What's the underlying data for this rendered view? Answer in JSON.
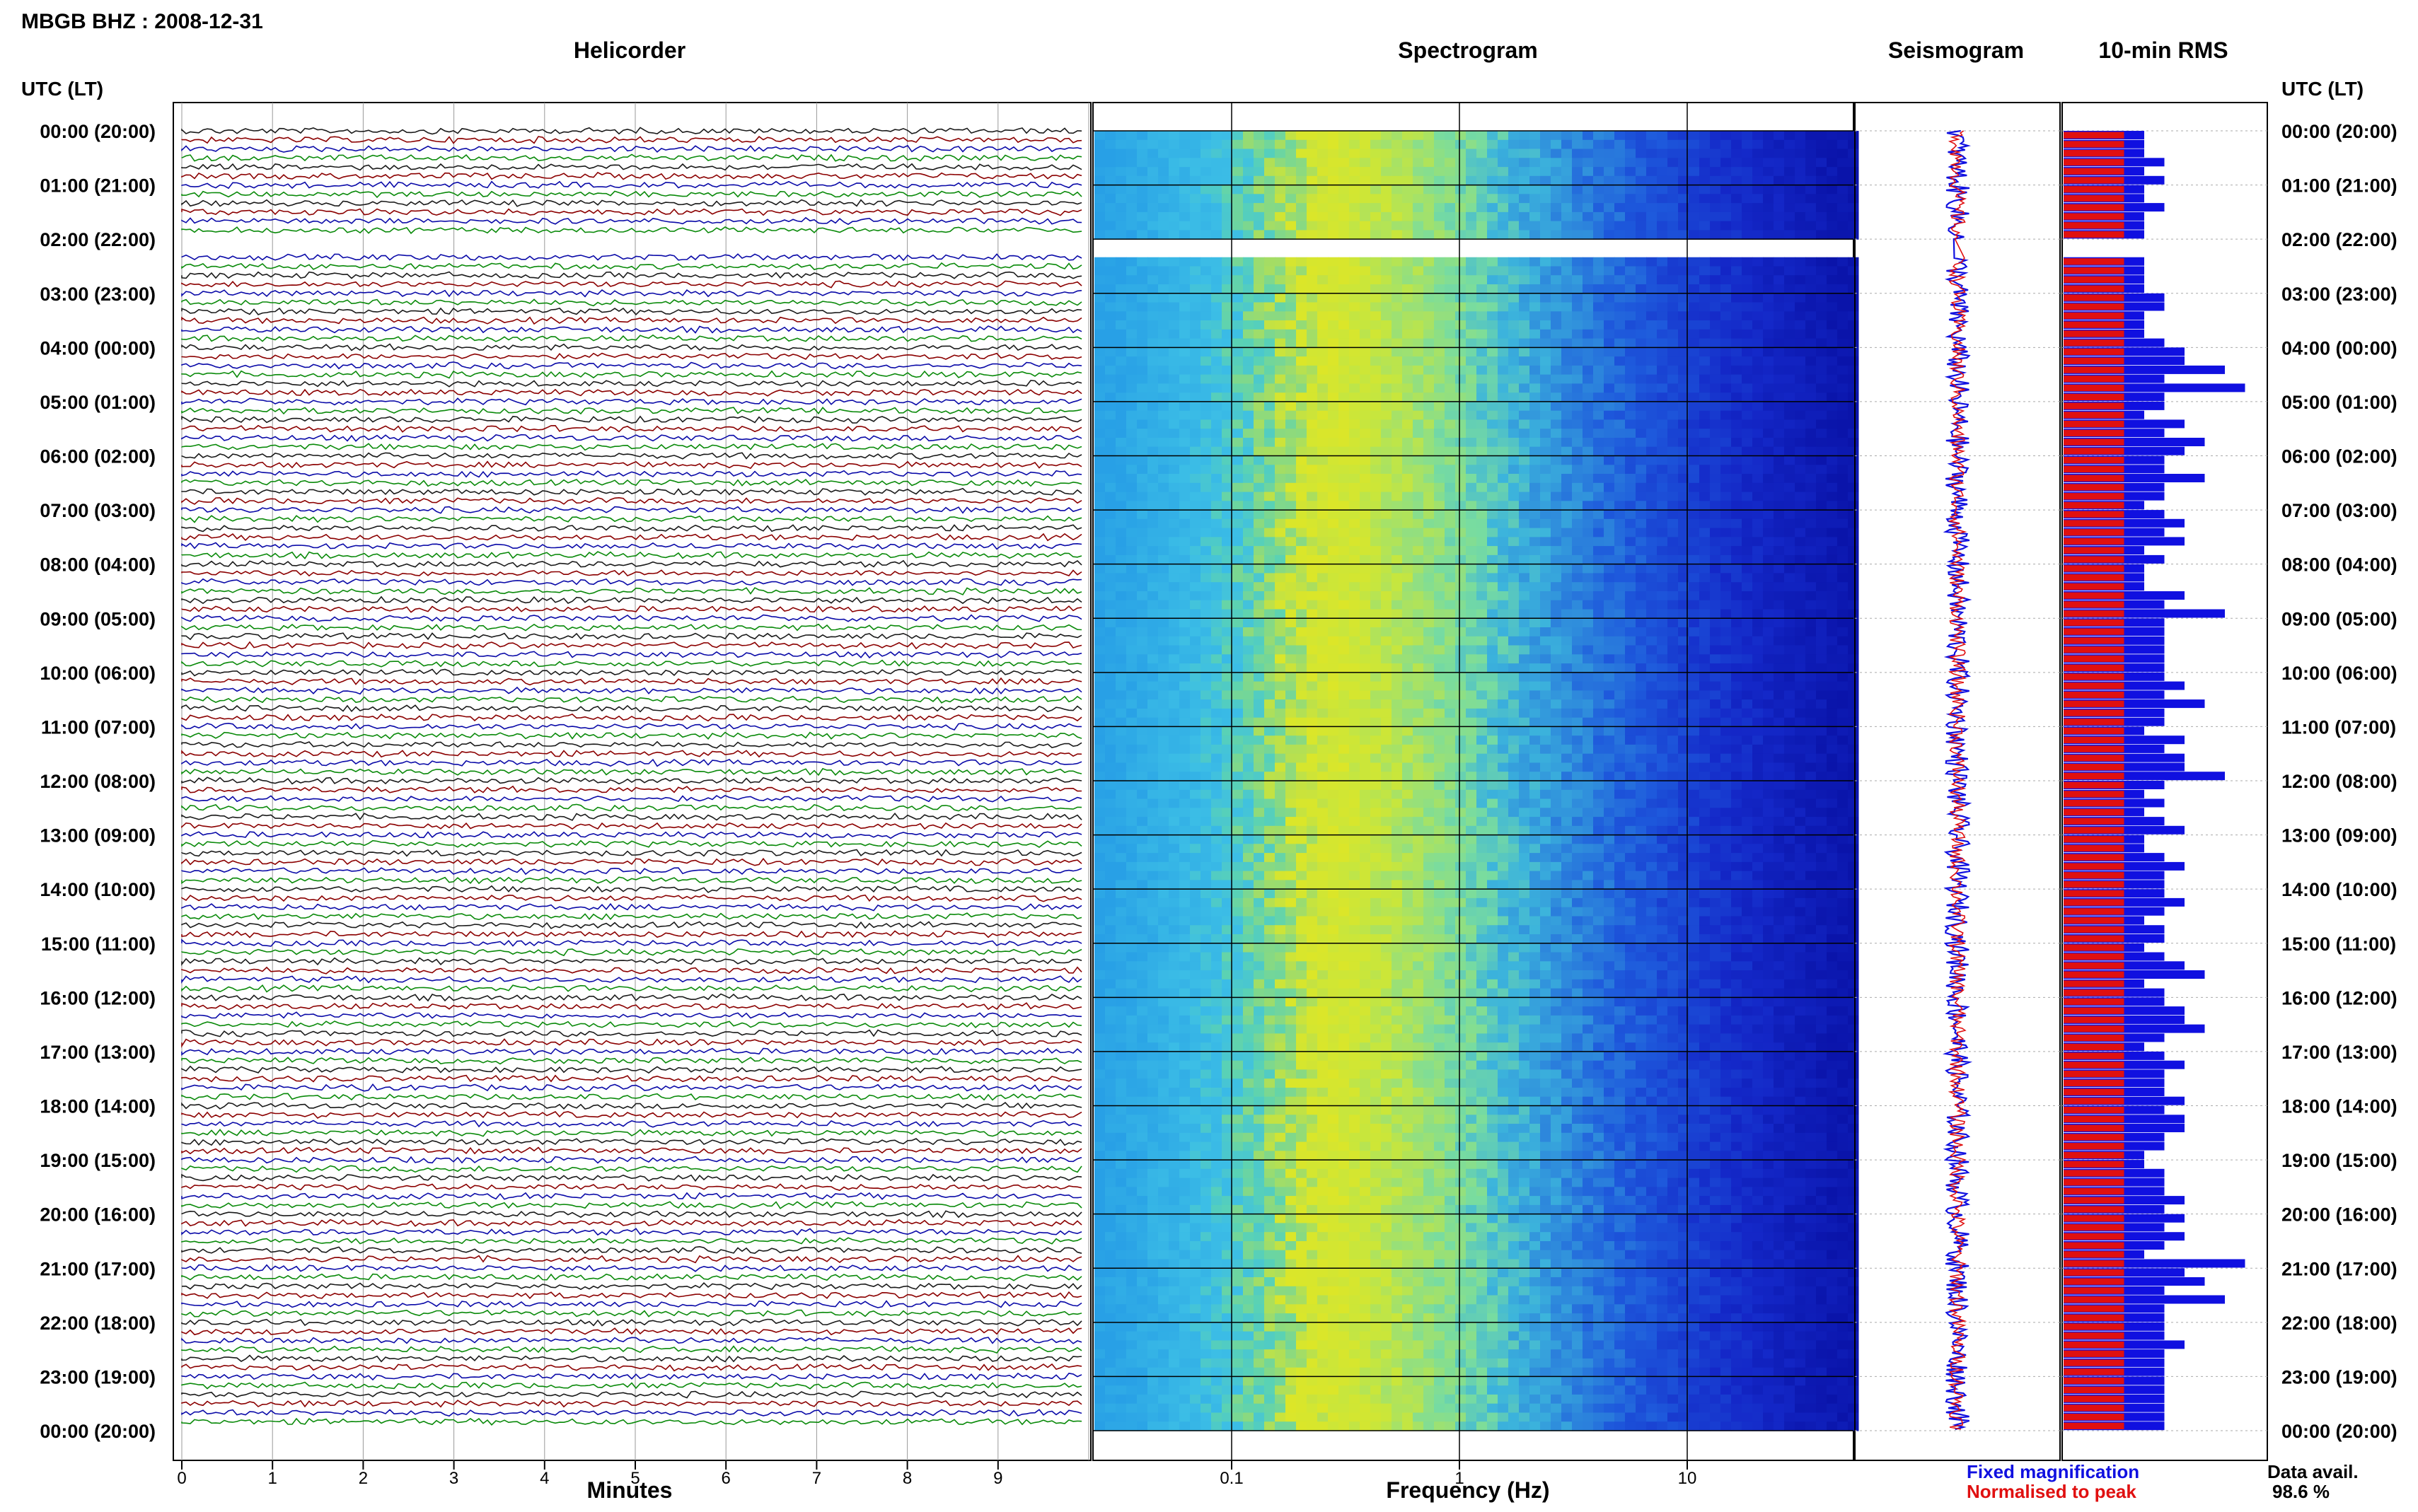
{
  "header": {
    "station_title": "MBGB BHZ : 2008-12-31",
    "utc_lt_label": "UTC (LT)"
  },
  "panels": {
    "helicorder": "Helicorder",
    "spectrogram": "Spectrogram",
    "seismogram": "Seismogram",
    "rms": "10-min RMS"
  },
  "time_labels": [
    "00:00 (20:00)",
    "01:00 (21:00)",
    "02:00 (22:00)",
    "03:00 (23:00)",
    "04:00 (00:00)",
    "05:00 (01:00)",
    "06:00 (02:00)",
    "07:00 (03:00)",
    "08:00 (04:00)",
    "09:00 (05:00)",
    "10:00 (06:00)",
    "11:00 (07:00)",
    "12:00 (08:00)",
    "13:00 (09:00)",
    "14:00 (10:00)",
    "15:00 (11:00)",
    "16:00 (12:00)",
    "17:00 (13:00)",
    "18:00 (14:00)",
    "19:00 (15:00)",
    "20:00 (16:00)",
    "21:00 (17:00)",
    "22:00 (18:00)",
    "23:00 (19:00)",
    "00:00 (20:00)"
  ],
  "helicorder_axis": {
    "xlabel": "Minutes",
    "ticks": [
      "0",
      "1",
      "2",
      "3",
      "4",
      "5",
      "6",
      "7",
      "8",
      "9"
    ]
  },
  "spectrogram_axis": {
    "xlabel": "Frequency (Hz)",
    "ticks": [
      "0.1",
      "1",
      "10"
    ]
  },
  "legend": {
    "fixed": "Fixed magnification",
    "normalised": "Normalised to peak",
    "fixed_color": "#1010e0",
    "normalised_color": "#e01010"
  },
  "data_avail": {
    "label": "Data avail.",
    "value": "98.6 %"
  },
  "chart_data": {
    "type": "heatmap",
    "title": "MBGB BHZ : 2008-12-31",
    "rows_per_hour": 6,
    "total_rows": 144,
    "trace_colors": [
      "#1a1a1a",
      "#8b0000",
      "#0a0aa8",
      "#0a8a0a"
    ],
    "data_gaps_rows": [
      12,
      13
    ],
    "rms_fixed": [
      4,
      4,
      4,
      5,
      4,
      5,
      4,
      4,
      5,
      4,
      4,
      4,
      0,
      0,
      4,
      4,
      4,
      4,
      5,
      5,
      4,
      4,
      4,
      5,
      6,
      6,
      8,
      5,
      9,
      5,
      5,
      4,
      6,
      5,
      7,
      6,
      5,
      5,
      7,
      5,
      5,
      4,
      5,
      6,
      5,
      6,
      4,
      5,
      4,
      4,
      4,
      6,
      5,
      8,
      5,
      5,
      5,
      5,
      5,
      5,
      5,
      6,
      5,
      7,
      5,
      5,
      4,
      6,
      5,
      6,
      6,
      8,
      5,
      4,
      5,
      4,
      5,
      6,
      4,
      4,
      5,
      6,
      5,
      5,
      5,
      6,
      5,
      4,
      5,
      5,
      4,
      5,
      6,
      7,
      4,
      5,
      5,
      6,
      6,
      7,
      5,
      4,
      5,
      6,
      5,
      5,
      5,
      6,
      5,
      6,
      6,
      5,
      5,
      4,
      4,
      5,
      5,
      5,
      6,
      5,
      6,
      5,
      6,
      5,
      4,
      9,
      6,
      7,
      5,
      8,
      5,
      5,
      5,
      5,
      6,
      5,
      5,
      5,
      5,
      5,
      5,
      5,
      5,
      5
    ],
    "rms_norm": [
      3,
      3,
      3,
      3,
      3,
      3,
      3,
      3,
      3,
      3,
      3,
      3,
      0,
      0,
      3,
      3,
      3,
      3,
      3,
      3,
      3,
      3,
      3,
      3,
      3,
      3,
      3,
      3,
      3,
      3,
      3,
      3,
      3,
      3,
      3,
      3,
      3,
      3,
      3,
      3,
      3,
      3,
      3,
      3,
      3,
      3,
      3,
      3,
      3,
      3,
      3,
      3,
      3,
      3,
      3,
      3,
      3,
      3,
      3,
      3,
      3,
      3,
      3,
      3,
      3,
      3,
      3,
      3,
      3,
      3,
      3,
      3,
      3,
      3,
      3,
      3,
      3,
      3,
      3,
      3,
      3,
      3,
      3,
      3,
      3,
      3,
      3,
      3,
      3,
      3,
      3,
      3,
      3,
      3,
      3,
      3,
      3,
      3,
      3,
      3,
      3,
      3,
      3,
      3,
      3,
      3,
      3,
      3,
      3,
      3,
      3,
      3,
      3,
      3,
      3,
      3,
      3,
      3,
      3,
      3,
      3,
      3,
      3,
      3,
      3,
      3,
      3,
      3,
      3,
      3,
      3,
      3,
      3,
      3,
      3,
      3,
      3,
      3,
      3,
      3,
      3,
      3,
      3,
      3
    ]
  }
}
